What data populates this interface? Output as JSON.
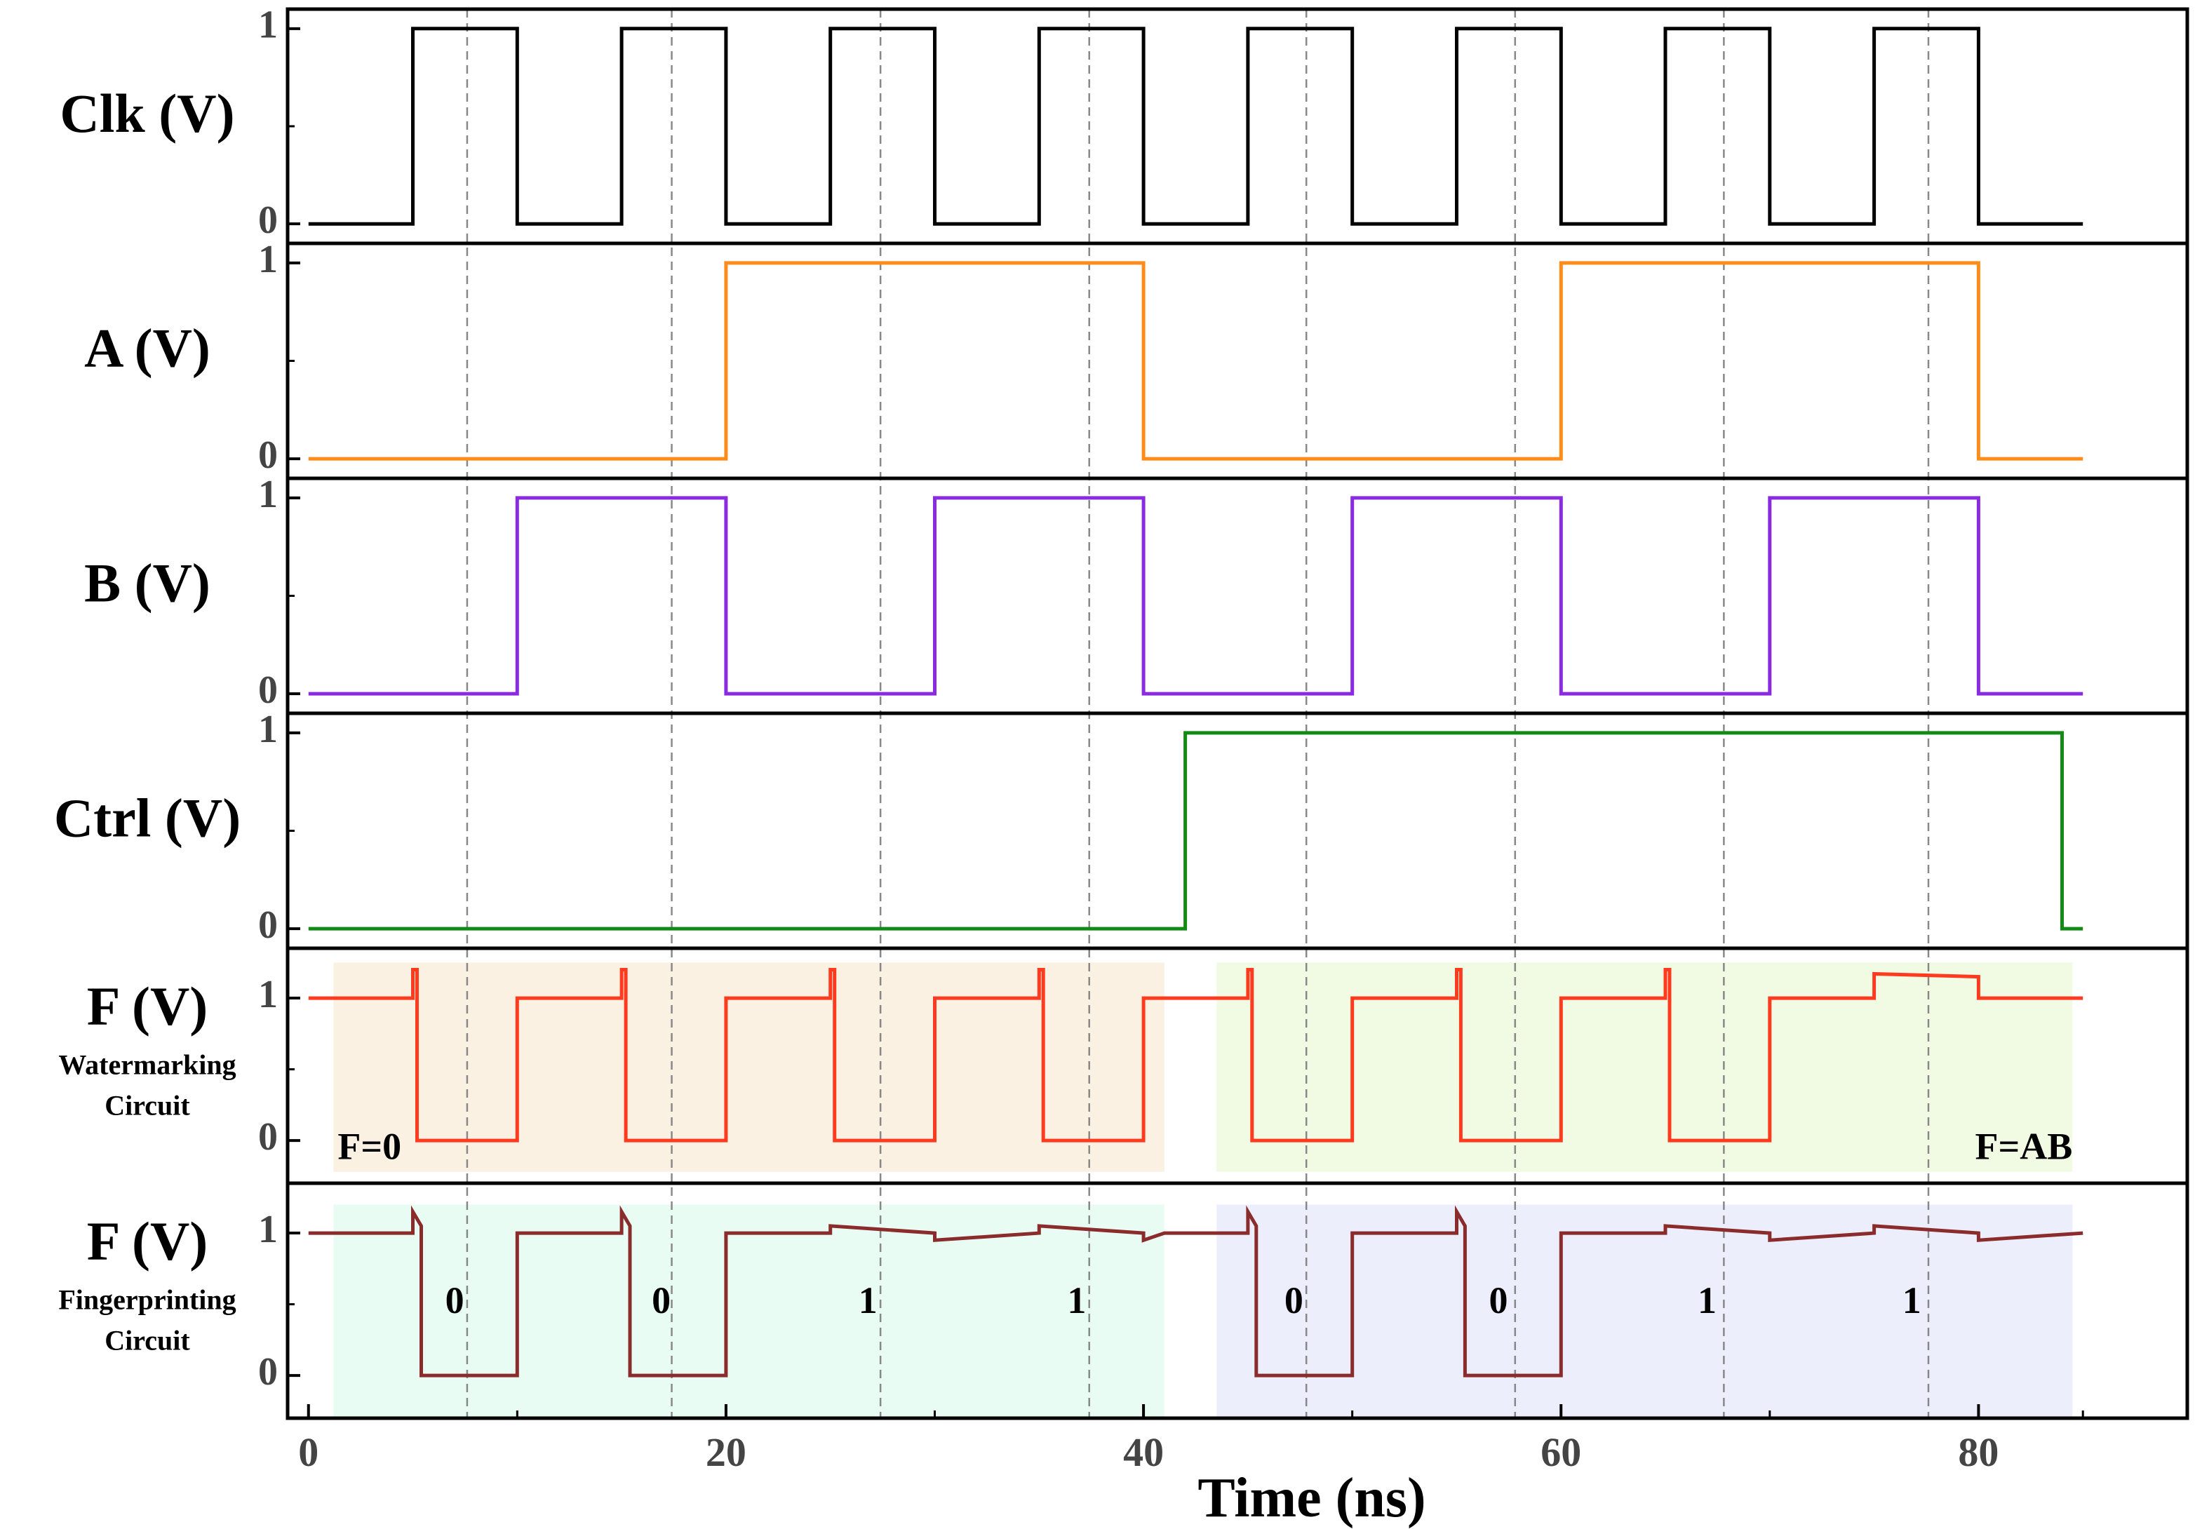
{
  "chart_data": {
    "type": "line",
    "title": "",
    "xlabel": "Time (ns)",
    "xlim": [
      -1,
      90
    ],
    "x_ticks": [
      0,
      20,
      40,
      60,
      80
    ],
    "x_minor_ticks": [
      10,
      30,
      50,
      70,
      85
    ],
    "vlines": [
      7.6,
      17.4,
      27.4,
      37.4,
      47.8,
      57.8,
      67.8,
      77.6
    ],
    "panels": [
      {
        "ylabel": "Clk (V)",
        "sublabel": [],
        "ylim": [
          -0.1,
          1.1
        ],
        "yticks": [
          0,
          1
        ],
        "color": "#000000",
        "series": [
          {
            "name": "Clk",
            "x": [
              0,
              5,
              5,
              10,
              10,
              15,
              15,
              20,
              20,
              25,
              25,
              30,
              30,
              35,
              35,
              40,
              40,
              45,
              45,
              50,
              50,
              55,
              55,
              60,
              60,
              65,
              65,
              70,
              70,
              75,
              75,
              80,
              80,
              85
            ],
            "y": [
              0,
              0,
              1,
              1,
              0,
              0,
              1,
              1,
              0,
              0,
              1,
              1,
              0,
              0,
              1,
              1,
              0,
              0,
              1,
              1,
              0,
              0,
              1,
              1,
              0,
              0,
              1,
              1,
              0,
              0,
              1,
              1,
              0,
              0
            ]
          }
        ],
        "regions": [],
        "annotations": []
      },
      {
        "ylabel": "A (V)",
        "sublabel": [],
        "ylim": [
          -0.1,
          1.1
        ],
        "yticks": [
          0,
          1
        ],
        "color": "#ff8c1a",
        "series": [
          {
            "name": "A",
            "x": [
              0,
              20,
              20,
              40,
              40,
              60,
              60,
              80,
              80,
              85
            ],
            "y": [
              0,
              0,
              1,
              1,
              0,
              0,
              1,
              1,
              0,
              0
            ]
          }
        ],
        "regions": [],
        "annotations": []
      },
      {
        "ylabel": "B (V)",
        "sublabel": [],
        "ylim": [
          -0.1,
          1.1
        ],
        "yticks": [
          0,
          1
        ],
        "color": "#8a2be2",
        "series": [
          {
            "name": "B",
            "x": [
              0,
              10,
              10,
              20,
              20,
              30,
              30,
              40,
              40,
              50,
              50,
              60,
              60,
              70,
              70,
              80,
              80,
              85
            ],
            "y": [
              0,
              0,
              1,
              1,
              0,
              0,
              1,
              1,
              0,
              0,
              1,
              1,
              0,
              0,
              1,
              1,
              0,
              0
            ]
          }
        ],
        "regions": [],
        "annotations": []
      },
      {
        "ylabel": "Ctrl (V)",
        "sublabel": [],
        "ylim": [
          -0.1,
          1.1
        ],
        "yticks": [
          0,
          1
        ],
        "color": "#138a13",
        "series": [
          {
            "name": "Ctrl",
            "x": [
              0,
              42,
              42,
              84,
              84,
              85
            ],
            "y": [
              0,
              0,
              1,
              1,
              0,
              0
            ]
          }
        ],
        "regions": [],
        "annotations": []
      },
      {
        "ylabel": "F (V)",
        "sublabel": [
          "Watermarking",
          "Circuit"
        ],
        "ylim": [
          -0.3,
          1.35
        ],
        "yticks": [
          0,
          1
        ],
        "color": "#ff3b1f",
        "series": [
          {
            "name": "F watermarking",
            "x": [
              0,
              5,
              5,
              5.2,
              5.2,
              10,
              10,
              15,
              15,
              15.2,
              15.2,
              20,
              20,
              25,
              25,
              25.2,
              25.2,
              30,
              30,
              35,
              35,
              35.2,
              35.2,
              40,
              40,
              41,
              43.5,
              45,
              45,
              45.2,
              45.2,
              50,
              50,
              55,
              55,
              55.2,
              55.2,
              60,
              60,
              65,
              65,
              65.2,
              65.2,
              70,
              70,
              75,
              75,
              80,
              80,
              85
            ],
            "y": [
              1,
              1,
              1.2,
              1.2,
              0,
              0,
              1,
              1,
              1.2,
              1.2,
              0,
              0,
              1,
              1,
              1.2,
              1.2,
              0,
              0,
              1,
              1,
              1.2,
              1.2,
              0,
              0,
              1,
              1,
              1,
              1,
              1.2,
              1.2,
              0,
              0,
              1,
              1,
              1.2,
              1.2,
              0,
              0,
              1,
              1,
              1.2,
              1.2,
              0,
              0,
              1,
              1,
              1.17,
              1.15,
              1,
              1
            ]
          }
        ],
        "regions": [
          {
            "x0": 1.2,
            "x1": 41,
            "y0": -0.22,
            "y1": 1.25,
            "color": "#faf1e3"
          },
          {
            "x0": 43.5,
            "x1": 84.5,
            "y0": -0.22,
            "y1": 1.25,
            "color": "#f1fbe4"
          }
        ],
        "annotations": [
          {
            "text": "F=0",
            "x": 1.4,
            "y": -0.07,
            "anchor": "start"
          },
          {
            "text": "F=AB",
            "x": 84.5,
            "y": -0.07,
            "anchor": "end"
          }
        ]
      },
      {
        "ylabel": "F (V)",
        "sublabel": [
          "Fingerprinting",
          "Circuit"
        ],
        "ylim": [
          -0.3,
          1.35
        ],
        "yticks": [
          0,
          1
        ],
        "color": "#8b2c2c",
        "series": [
          {
            "name": "F fingerprinting",
            "x": [
              0,
              5,
              5,
              5.4,
              5.4,
              10,
              10,
              15,
              15,
              15.4,
              15.4,
              20,
              20,
              25,
              25,
              30,
              30,
              35,
              35,
              40,
              40,
              41,
              43.5,
              45,
              45,
              45.4,
              45.4,
              50,
              50,
              55,
              55,
              55.4,
              55.4,
              60,
              60,
              65,
              65,
              70,
              70,
              75,
              75,
              80,
              80,
              85
            ],
            "y": [
              1,
              1,
              1.15,
              1.05,
              0,
              0,
              1,
              1,
              1.15,
              1.05,
              0,
              0,
              1,
              1,
              1.05,
              1,
              0.95,
              1,
              1.05,
              1,
              0.95,
              1,
              1,
              1,
              1.15,
              1.05,
              0,
              0,
              1,
              1,
              1.15,
              1.05,
              0,
              0,
              1,
              1,
              1.05,
              1,
              0.95,
              1,
              1.05,
              1,
              0.95,
              1
            ]
          }
        ],
        "regions": [
          {
            "x0": 1.2,
            "x1": 41,
            "y0": -0.3,
            "y1": 1.2,
            "color": "#e8fcf4"
          },
          {
            "x0": 43.5,
            "x1": 84.5,
            "y0": -0.3,
            "y1": 1.2,
            "color": "#eceefc"
          }
        ],
        "annotations": [
          {
            "text": "0",
            "x": 7,
            "y": 0.5,
            "anchor": "middle"
          },
          {
            "text": "0",
            "x": 16.9,
            "y": 0.5,
            "anchor": "middle"
          },
          {
            "text": "1",
            "x": 26.8,
            "y": 0.5,
            "anchor": "middle"
          },
          {
            "text": "1",
            "x": 36.8,
            "y": 0.5,
            "anchor": "middle"
          },
          {
            "text": "0",
            "x": 47.2,
            "y": 0.5,
            "anchor": "middle"
          },
          {
            "text": "0",
            "x": 57,
            "y": 0.5,
            "anchor": "middle"
          },
          {
            "text": "1",
            "x": 67,
            "y": 0.5,
            "anchor": "middle"
          },
          {
            "text": "1",
            "x": 76.8,
            "y": 0.5,
            "anchor": "middle"
          }
        ]
      }
    ]
  }
}
